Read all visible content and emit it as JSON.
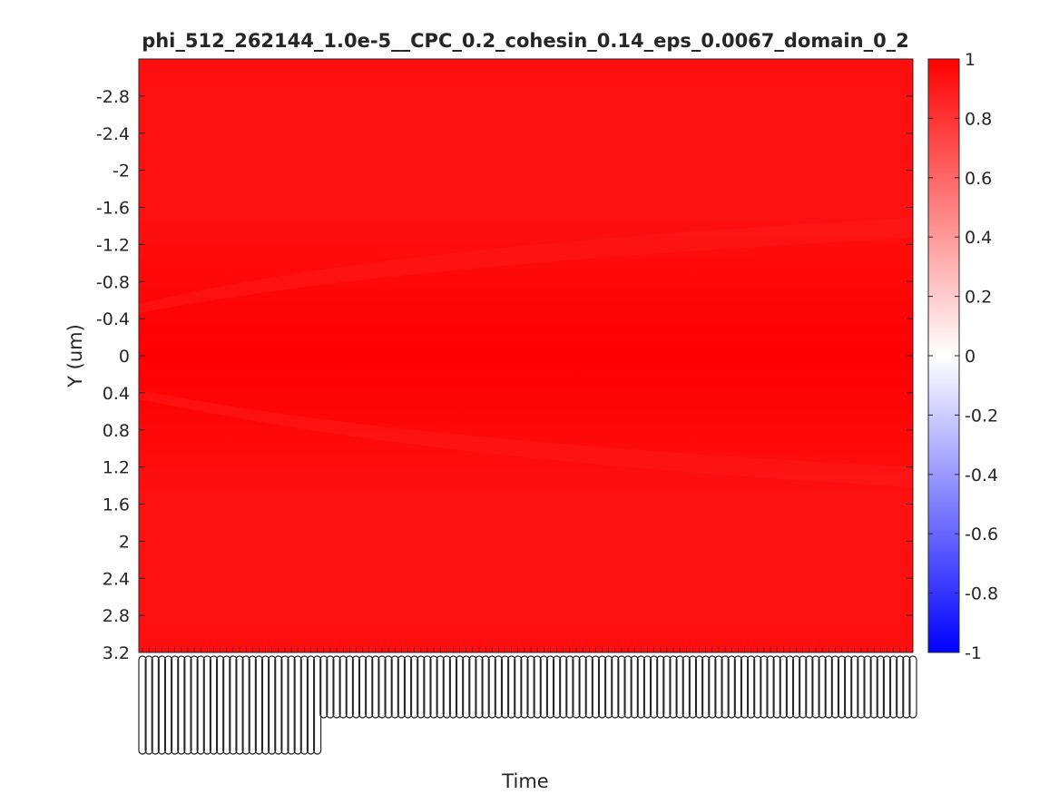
{
  "chart_data": {
    "type": "heatmap",
    "title": "phi_512_262144_1.0e-5__CPC_0.2_cohesin_0.14_eps_0.0067_domain_0_2",
    "xlabel": "Time",
    "ylabel": "Y (um)",
    "y_tick_labels": [
      "-2.8",
      "-2.4",
      "-2",
      "-1.6",
      "-1.2",
      "-0.8",
      "-0.4",
      "0",
      "0.4",
      "0.8",
      "1.2",
      "1.6",
      "2",
      "2.4",
      "2.8",
      "3.2"
    ],
    "y_tick_values": [
      -2.8,
      -2.4,
      -2.0,
      -1.6,
      -1.2,
      -0.8,
      -0.4,
      0,
      0.4,
      0.8,
      1.2,
      1.6,
      2.0,
      2.4,
      2.8,
      3.2
    ],
    "ylim": [
      -3.2,
      3.2
    ],
    "y_direction": "reversed",
    "colorbar": {
      "range": [
        -1,
        1
      ],
      "tick_labels": [
        "1",
        "0.8",
        "0.6",
        "0.4",
        "0.2",
        "0",
        "-0.2",
        "-0.4",
        "-0.6",
        "-0.8",
        "-1"
      ],
      "tick_values": [
        1,
        0.8,
        0.6,
        0.4,
        0.2,
        0,
        -0.2,
        -0.4,
        -0.6,
        -0.8,
        -1
      ],
      "colormap": [
        "#0000ff",
        "#ffffff",
        "#ff0000"
      ]
    },
    "field_summary": "values near 1 everywhere; slightly lower band near y=±0.4 at early time, widening toward y=±1.4 at late time",
    "colors": {
      "high": "#ff0000",
      "field": "#fd1010",
      "mid": "#ffffff",
      "low": "#0000ff",
      "axis": "#262626"
    }
  }
}
